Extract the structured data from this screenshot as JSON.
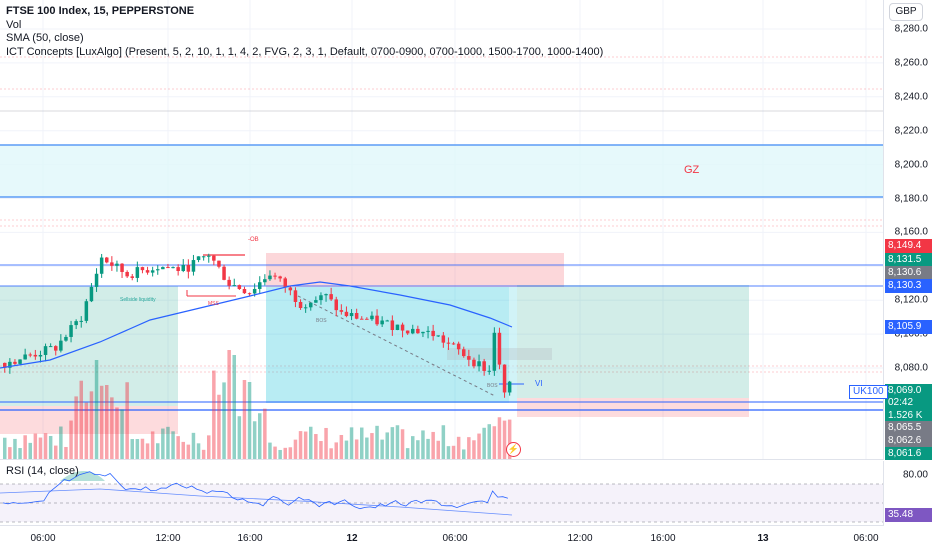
{
  "legend": {
    "title": "FTSE 100 Index, 15, PEPPERSTONE",
    "vol": "Vol",
    "sma": "SMA (50, close)",
    "ict": "ICT Concepts [LuxAlgo] (Present, 5, 2, 10, 1, 1, 4, 2, FVG, 2, 3, 1, Default, 0700-0900, 0700-1000, 1500-1700, 1000-1400)"
  },
  "rsi_legend": "RSI (14, close)",
  "currency": "GBP",
  "symbol_badge": "UK100",
  "price_axis": {
    "labels": [
      "8,280.0",
      "8,260.0",
      "8,240.0",
      "8,220.0",
      "8,200.0",
      "8,180.0",
      "8,160.0",
      "8,120.0",
      "8,100.0",
      "8,080.0"
    ]
  },
  "price_tags": [
    {
      "text": "8,149.4",
      "color": "#f23645"
    },
    {
      "text": "8,131.5",
      "color": "#089981"
    },
    {
      "text": "8,130.6",
      "color": "#787b86"
    },
    {
      "text": "8,130.3",
      "color": "#2962ff"
    },
    {
      "text": "8,105.9",
      "color": "#2962ff"
    },
    {
      "text": "8,069.0",
      "color": "#089981"
    },
    {
      "text": "02:42",
      "color": "#089981"
    },
    {
      "text": "1.526 K",
      "color": "#089981"
    },
    {
      "text": "8,065.5",
      "color": "#787b86"
    },
    {
      "text": "8,062.6",
      "color": "#787b86"
    },
    {
      "text": "8,061.6",
      "color": "#089981"
    }
  ],
  "rsi_axis": {
    "labels": [
      "80.00"
    ],
    "tags": [
      {
        "text": "35.48",
        "color": "#7e57c2"
      }
    ]
  },
  "time_axis": [
    {
      "text": "06:00",
      "bold": false
    },
    {
      "text": "12:00",
      "bold": false
    },
    {
      "text": "16:00",
      "bold": false
    },
    {
      "text": "12",
      "bold": true
    },
    {
      "text": "06:00",
      "bold": false
    },
    {
      "text": "12:00",
      "bold": false
    },
    {
      "text": "16:00",
      "bold": false
    },
    {
      "text": "13",
      "bold": true
    },
    {
      "text": "06:00",
      "bold": false
    }
  ],
  "annotations": {
    "gz": "GZ",
    "ob": "-OB",
    "vi": "VI",
    "mss": "MSS",
    "bos": "BOS",
    "sellside": "Sellside liquidity"
  },
  "colors": {
    "up": "#089981",
    "down": "#f23645",
    "sma": "#2962ff",
    "rsi": "#7e57c2"
  },
  "chart_data": {
    "type": "candlestick",
    "symbol": "FTSE 100 Index",
    "interval": "15",
    "source": "PEPPERSTONE",
    "ylim": [
      8058,
      8290
    ],
    "last_price": 8069.0,
    "levels": {
      "ob_top": 8149.4,
      "high_line": 8131.5,
      "level_2": 8130.6,
      "level_3": 8130.3,
      "sma_value": 8105.9,
      "low_1": 8065.5,
      "low_2": 8062.6,
      "low_3": 8061.6,
      "gz_top": 8213,
      "gz_bottom": 8182
    },
    "rsi": {
      "value": 35.48,
      "levels": [
        80,
        20
      ]
    },
    "volume_last": "1.526 K"
  }
}
